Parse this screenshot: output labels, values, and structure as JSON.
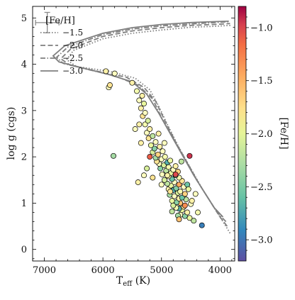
{
  "chart_data": {
    "type": "scatter",
    "xlabel": "T",
    "xlabel_sub": "eff",
    "xlabel_unit": " (K)",
    "ylabel": "log g (cgs)",
    "xlim": [
      7200,
      3750
    ],
    "ylim": [
      5.25,
      -0.25
    ],
    "x_ticks": [
      7000,
      6000,
      5000,
      4000
    ],
    "x_tick_labels": [
      "7000",
      "6000",
      "5000",
      "4000"
    ],
    "y_ticks": [
      0,
      1,
      2,
      3,
      4,
      5
    ],
    "y_tick_labels": [
      "0",
      "1",
      "2",
      "3",
      "4",
      "5"
    ],
    "y_invert": true,
    "x_invert": true,
    "grid": false,
    "legend": {
      "title": "[Fe/H]",
      "placement": "top-left",
      "entries": [
        {
          "label": "−1.5",
          "dash": "dotted"
        },
        {
          "label": "−2.0",
          "dash": "dashed"
        },
        {
          "label": "−2.5",
          "dash": "dashdot"
        },
        {
          "label": "−3.0",
          "dash": "solid"
        }
      ]
    },
    "colorbar": {
      "label": "[Fe/H]",
      "range": [
        -3.2,
        -0.8
      ],
      "ticks": [
        -1.0,
        -1.5,
        -2.0,
        -2.5,
        -3.0
      ],
      "tick_labels": [
        "−1.0",
        "−1.5",
        "−2.0",
        "−2.5",
        "−3.0"
      ],
      "colormap": "Spectral"
    },
    "isochrone_color": "#7f7f7f",
    "isochrones": [
      {
        "feh": "−1.5",
        "dash": "dotted",
        "points": [
          [
            3830,
            0.35
          ],
          [
            3950,
            0.6
          ],
          [
            4100,
            0.9
          ],
          [
            4300,
            1.3
          ],
          [
            4500,
            1.75
          ],
          [
            4700,
            2.2
          ],
          [
            4900,
            2.7
          ],
          [
            5050,
            3.1
          ],
          [
            5200,
            3.45
          ],
          [
            5450,
            3.7
          ],
          [
            5900,
            3.85
          ],
          [
            6450,
            3.95
          ],
          [
            6620,
            4.1
          ],
          [
            6500,
            4.3
          ],
          [
            6000,
            4.55
          ],
          [
            5500,
            4.67
          ],
          [
            5000,
            4.74
          ],
          [
            4500,
            4.8
          ],
          [
            4100,
            4.82
          ],
          [
            3820,
            4.84
          ]
        ]
      },
      {
        "feh": "−2.0",
        "dash": "dashed",
        "points": [
          [
            3880,
            0.5
          ],
          [
            4000,
            0.7
          ],
          [
            4150,
            1.0
          ],
          [
            4350,
            1.4
          ],
          [
            4550,
            1.85
          ],
          [
            4750,
            2.3
          ],
          [
            4950,
            2.8
          ],
          [
            5100,
            3.2
          ],
          [
            5300,
            3.5
          ],
          [
            5600,
            3.72
          ],
          [
            6100,
            3.85
          ],
          [
            6560,
            3.98
          ],
          [
            6720,
            4.12
          ],
          [
            6550,
            4.33
          ],
          [
            6000,
            4.6
          ],
          [
            5500,
            4.72
          ],
          [
            5000,
            4.79
          ],
          [
            4500,
            4.84
          ],
          [
            4100,
            4.86
          ],
          [
            3830,
            4.88
          ]
        ]
      },
      {
        "feh": "−2.5",
        "dash": "dashdot",
        "points": [
          [
            3900,
            0.6
          ],
          [
            4050,
            0.8
          ],
          [
            4200,
            1.1
          ],
          [
            4400,
            1.5
          ],
          [
            4600,
            1.95
          ],
          [
            4800,
            2.4
          ],
          [
            5000,
            2.85
          ],
          [
            5150,
            3.25
          ],
          [
            5400,
            3.55
          ],
          [
            5800,
            3.75
          ],
          [
            6300,
            3.9
          ],
          [
            6680,
            4.02
          ],
          [
            6790,
            4.15
          ],
          [
            6600,
            4.37
          ],
          [
            6000,
            4.64
          ],
          [
            5500,
            4.76
          ],
          [
            5000,
            4.83
          ],
          [
            4500,
            4.87
          ],
          [
            4100,
            4.9
          ],
          [
            3840,
            4.92
          ]
        ]
      },
      {
        "feh": "−3.0",
        "dash": "solid",
        "points": [
          [
            3950,
            0.7
          ],
          [
            4100,
            0.9
          ],
          [
            4250,
            1.2
          ],
          [
            4450,
            1.6
          ],
          [
            4650,
            2.05
          ],
          [
            4850,
            2.5
          ],
          [
            5050,
            2.95
          ],
          [
            5250,
            3.35
          ],
          [
            5500,
            3.62
          ],
          [
            5900,
            3.78
          ],
          [
            6350,
            3.92
          ],
          [
            6750,
            4.05
          ],
          [
            6850,
            4.18
          ],
          [
            6650,
            4.4
          ],
          [
            6000,
            4.67
          ],
          [
            5500,
            4.79
          ],
          [
            5000,
            4.86
          ],
          [
            4500,
            4.9
          ],
          [
            4100,
            4.92
          ],
          [
            3850,
            4.93
          ]
        ]
      }
    ],
    "error_bar": {
      "x": 6950,
      "y": 4.9,
      "x_err": 200,
      "y_err": 0.22
    },
    "points": [
      {
        "x": 4310,
        "y": 0.52,
        "feh": -3.0
      },
      {
        "x": 4450,
        "y": 0.62,
        "feh": -2.4
      },
      {
        "x": 4520,
        "y": 0.68,
        "feh": -2.2
      },
      {
        "x": 4600,
        "y": 0.72,
        "feh": -2.6
      },
      {
        "x": 4680,
        "y": 0.75,
        "feh": -2.0
      },
      {
        "x": 4720,
        "y": 0.73,
        "feh": -2.5
      },
      {
        "x": 4560,
        "y": 0.8,
        "feh": -1.9
      },
      {
        "x": 4650,
        "y": 0.85,
        "feh": -2.2
      },
      {
        "x": 4700,
        "y": 0.88,
        "feh": -2.8
      },
      {
        "x": 4750,
        "y": 0.9,
        "feh": -2.1
      },
      {
        "x": 4620,
        "y": 0.92,
        "feh": -1.8
      },
      {
        "x": 4800,
        "y": 0.95,
        "feh": -2.3
      },
      {
        "x": 4500,
        "y": 0.98,
        "feh": -2.0
      },
      {
        "x": 4680,
        "y": 1.0,
        "feh": -1.6
      },
      {
        "x": 4740,
        "y": 1.02,
        "feh": -2.6
      },
      {
        "x": 4820,
        "y": 1.05,
        "feh": -2.2
      },
      {
        "x": 4580,
        "y": 1.08,
        "feh": -2.4
      },
      {
        "x": 4700,
        "y": 1.1,
        "feh": -1.9
      },
      {
        "x": 4650,
        "y": 1.12,
        "feh": -2.7
      },
      {
        "x": 4780,
        "y": 1.15,
        "feh": -2.0
      },
      {
        "x": 4860,
        "y": 1.18,
        "feh": -2.5
      },
      {
        "x": 4600,
        "y": 1.2,
        "feh": -1.7
      },
      {
        "x": 4720,
        "y": 1.22,
        "feh": -2.3
      },
      {
        "x": 4680,
        "y": 1.25,
        "feh": -2.1
      },
      {
        "x": 4800,
        "y": 1.28,
        "feh": -2.8
      },
      {
        "x": 4880,
        "y": 1.3,
        "feh": -1.9
      },
      {
        "x": 4750,
        "y": 1.32,
        "feh": -2.6
      },
      {
        "x": 4620,
        "y": 1.35,
        "feh": -2.0
      },
      {
        "x": 4840,
        "y": 1.38,
        "feh": -2.2
      },
      {
        "x": 4700,
        "y": 1.4,
        "feh": -1.5
      },
      {
        "x": 4900,
        "y": 1.42,
        "feh": -2.4
      },
      {
        "x": 4780,
        "y": 1.45,
        "feh": -2.0
      },
      {
        "x": 4650,
        "y": 1.48,
        "feh": -1.8
      },
      {
        "x": 4950,
        "y": 1.5,
        "feh": -2.3
      },
      {
        "x": 4820,
        "y": 1.52,
        "feh": -2.7
      },
      {
        "x": 4700,
        "y": 1.55,
        "feh": -2.1
      },
      {
        "x": 4880,
        "y": 1.58,
        "feh": -1.9
      },
      {
        "x": 4760,
        "y": 1.6,
        "feh": -2.5
      },
      {
        "x": 4990,
        "y": 1.62,
        "feh": -2.0
      },
      {
        "x": 4840,
        "y": 1.65,
        "feh": -2.2
      },
      {
        "x": 4720,
        "y": 1.68,
        "feh": -1.7
      },
      {
        "x": 4920,
        "y": 1.7,
        "feh": -2.4
      },
      {
        "x": 4800,
        "y": 1.72,
        "feh": -2.0
      },
      {
        "x": 5020,
        "y": 1.75,
        "feh": -2.6
      },
      {
        "x": 4880,
        "y": 1.78,
        "feh": -2.1
      },
      {
        "x": 4760,
        "y": 1.8,
        "feh": -1.9
      },
      {
        "x": 4960,
        "y": 1.82,
        "feh": -2.3
      },
      {
        "x": 5040,
        "y": 1.85,
        "feh": -2.0
      },
      {
        "x": 4900,
        "y": 1.88,
        "feh": -2.8
      },
      {
        "x": 5080,
        "y": 1.9,
        "feh": -1.8
      },
      {
        "x": 4850,
        "y": 1.92,
        "feh": -2.2
      },
      {
        "x": 5000,
        "y": 1.95,
        "feh": -2.0
      },
      {
        "x": 5100,
        "y": 1.98,
        "feh": -2.5
      },
      {
        "x": 4940,
        "y": 2.0,
        "feh": -2.1
      },
      {
        "x": 5060,
        "y": 2.05,
        "feh": -1.7
      },
      {
        "x": 5150,
        "y": 2.1,
        "feh": -2.3
      },
      {
        "x": 4980,
        "y": 2.12,
        "feh": -2.0
      },
      {
        "x": 5120,
        "y": 2.18,
        "feh": -2.6
      },
      {
        "x": 5030,
        "y": 2.22,
        "feh": -1.9
      },
      {
        "x": 5180,
        "y": 2.25,
        "feh": -2.2
      },
      {
        "x": 5100,
        "y": 2.32,
        "feh": -2.0
      },
      {
        "x": 5220,
        "y": 2.4,
        "feh": -1.8
      },
      {
        "x": 5150,
        "y": 2.45,
        "feh": -2.4
      },
      {
        "x": 5250,
        "y": 2.52,
        "feh": -2.0
      },
      {
        "x": 5200,
        "y": 2.6,
        "feh": -1.9
      },
      {
        "x": 5280,
        "y": 2.7,
        "feh": -2.1
      },
      {
        "x": 5230,
        "y": 2.78,
        "feh": -2.3
      },
      {
        "x": 5320,
        "y": 2.88,
        "feh": -1.8
      },
      {
        "x": 5280,
        "y": 2.95,
        "feh": -2.0
      },
      {
        "x": 5350,
        "y": 3.05,
        "feh": -1.9
      },
      {
        "x": 5300,
        "y": 3.15,
        "feh": -2.2
      },
      {
        "x": 5380,
        "y": 3.22,
        "feh": -2.0
      },
      {
        "x": 5330,
        "y": 3.32,
        "feh": -1.9
      },
      {
        "x": 5420,
        "y": 3.42,
        "feh": -2.1
      },
      {
        "x": 5820,
        "y": 2.02,
        "feh": -2.5
      },
      {
        "x": 5900,
        "y": 3.5,
        "feh": -2.0
      },
      {
        "x": 5880,
        "y": 3.55,
        "feh": -1.8
      },
      {
        "x": 5500,
        "y": 3.6,
        "feh": -1.9
      },
      {
        "x": 5800,
        "y": 3.8,
        "feh": -2.0
      },
      {
        "x": 5950,
        "y": 3.85,
        "feh": -1.9
      },
      {
        "x": 5400,
        "y": 1.45,
        "feh": -1.9
      },
      {
        "x": 5300,
        "y": 1.6,
        "feh": -2.0
      },
      {
        "x": 5250,
        "y": 1.75,
        "feh": -2.3
      },
      {
        "x": 5150,
        "y": 1.55,
        "feh": -1.8
      },
      {
        "x": 5350,
        "y": 2.3,
        "feh": -1.9
      },
      {
        "x": 5450,
        "y": 2.6,
        "feh": -2.0
      },
      {
        "x": 5380,
        "y": 2.7,
        "feh": -1.9
      },
      {
        "x": 5200,
        "y": 2.0,
        "feh": -1.2
      },
      {
        "x": 4520,
        "y": 2.02,
        "feh": -1.0
      },
      {
        "x": 4760,
        "y": 1.62,
        "feh": -1.1
      },
      {
        "x": 4600,
        "y": 0.95,
        "feh": -1.4
      },
      {
        "x": 4380,
        "y": 0.8,
        "feh": -2.1
      },
      {
        "x": 4420,
        "y": 1.2,
        "feh": -2.0
      },
      {
        "x": 4560,
        "y": 1.4,
        "feh": -2.7
      },
      {
        "x": 4480,
        "y": 1.05,
        "feh": -1.9
      },
      {
        "x": 4660,
        "y": 1.9,
        "feh": -2.4
      },
      {
        "x": 4540,
        "y": 1.3,
        "feh": -2.2
      },
      {
        "x": 4950,
        "y": 2.3,
        "feh": -2.0
      },
      {
        "x": 5050,
        "y": 2.5,
        "feh": -1.9
      },
      {
        "x": 4700,
        "y": 0.65,
        "feh": -1.6
      },
      {
        "x": 4820,
        "y": 0.82,
        "feh": -2.4
      },
      {
        "x": 4900,
        "y": 1.6,
        "feh": -1.9
      },
      {
        "x": 5000,
        "y": 1.4,
        "feh": -2.0
      },
      {
        "x": 4850,
        "y": 1.25,
        "feh": -1.8
      }
    ]
  }
}
